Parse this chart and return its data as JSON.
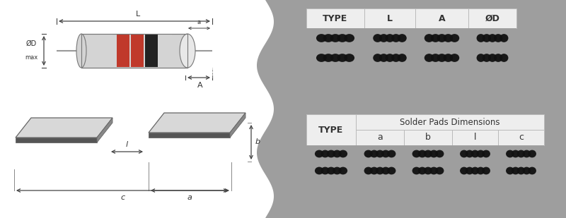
{
  "bg_color": "#ffffff",
  "gray_panel_color": "#9e9e9e",
  "table_header_bg": "#eeeeee",
  "top_table_headers": [
    "TYPE",
    "L",
    "A",
    "ØD"
  ],
  "bottom_table_headers": [
    "TYPE",
    "a",
    "b",
    "l",
    "c"
  ],
  "bottom_table_title": "Solder Pads Dimensions",
  "blob_color": "#111111",
  "resistor_body_color": "#d4d4d4",
  "resistor_stripe_colors": [
    "#d4d4d4",
    "#c0392b",
    "#c0392b",
    "#222222",
    "#d4d4d4"
  ],
  "lead_color": "#999999",
  "dim_line_color": "#444444",
  "pad_face_color": "#d8d8d8",
  "pad_edge_color": "#555555"
}
